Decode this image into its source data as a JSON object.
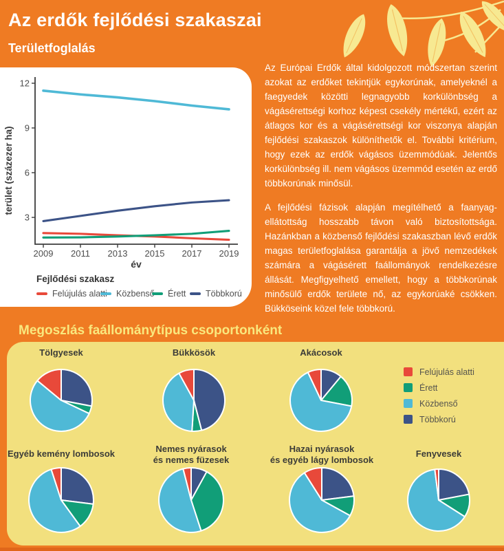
{
  "header": {
    "title": "Az erdők fejlődési szakaszai",
    "subtitle": "Területfoglalás"
  },
  "section2": {
    "title": "Megoszlás faállománytípus csoportonként"
  },
  "intro_paragraphs": [
    "Az Európai Erdők által kidolgozott módszertan szerint azokat az erdőket tekintjük egykorúnak, amelyeknél a faegyedek közötti legnagyobb korkülönbség a vágásérettségi korhoz képest csekély mértékű, ezért az átlagos kor és a vágásérettségi kor viszonya alapján fejlődési szakaszok különíthetők el. További kritérium, hogy ezek az erdők vágásos üzemmódúak. Jelentős korkülönbség ill. nem vágásos üzemmód esetén az erdő többkorúnak minősül.",
    "A fejlődési fázisok alapján megítélhető a faanyag-ellátottság hosszabb távon való biztosítottsága. Hazánkban a közbenső fejlődési szakaszban lévő erdők magas területfoglalása garantálja a jövő nemzedékek számára a vágásérett faállományok rendelkezésre állását. Megfigyelhető emellett, hogy a többkorúnak minősülő erdők területe nő, az egykorúaké csökken. Bükköseink közel fele többkorú."
  ],
  "colors": {
    "orange_background": "#EF7B23",
    "panel_yellow": "#F2E07E",
    "title_yellow": "#F9E87E",
    "leaf_yellow": "#F7E992",
    "card_white": "#FFFFFF",
    "bottom_bar_orange": "#E0661A",
    "felujulas_red": "#E8493A",
    "erett_green": "#119E78",
    "kozbenso_blue": "#4FB9D6",
    "tobbkoru_darkblue": "#3C5387"
  },
  "chart_data": [
    {
      "type": "line",
      "title": "Területfoglalás",
      "xlabel": "év",
      "ylabel": "terület (százezer ha)",
      "x": [
        2009,
        2011,
        2013,
        2015,
        2017,
        2019
      ],
      "xticks": [
        2009,
        2011,
        2013,
        2015,
        2017,
        2019
      ],
      "yticks": [
        3,
        6,
        9,
        12
      ],
      "ylim": [
        1,
        12.3
      ],
      "grid": false,
      "legend_title": "Fejlődési szakasz",
      "legend_position": "bottom",
      "legend_order": [
        "Felújulás alatti",
        "Közbenső",
        "Érett",
        "Többkorú"
      ],
      "series": [
        {
          "name": "Felújulás alatti",
          "color": "#E8493A",
          "values": [
            1.95,
            1.9,
            1.8,
            1.72,
            1.6,
            1.5
          ]
        },
        {
          "name": "Közbenső",
          "color": "#4FB9D6",
          "values": [
            11.5,
            11.25,
            11.05,
            10.8,
            10.5,
            10.25
          ]
        },
        {
          "name": "Érett",
          "color": "#119E78",
          "values": [
            1.65,
            1.66,
            1.72,
            1.8,
            1.9,
            2.1
          ]
        },
        {
          "name": "Többkorú",
          "color": "#3C5387",
          "values": [
            2.75,
            3.1,
            3.45,
            3.75,
            4.0,
            4.15
          ]
        }
      ]
    },
    {
      "type": "pie",
      "title": "Megoszlás faállománytípus csoportonként",
      "units": "percent",
      "slice_order": [
        "Többkorú",
        "Érett",
        "Közbenső",
        "Felújulás alatti"
      ],
      "legend": [
        {
          "label": "Felújulás alatti",
          "color": "#E8493A"
        },
        {
          "label": "Érett",
          "color": "#119E78"
        },
        {
          "label": "Közbenső",
          "color": "#4FB9D6"
        },
        {
          "label": "Többkorú",
          "color": "#3C5387"
        }
      ],
      "charts": [
        {
          "title_lines": [
            "Tölgyesek"
          ],
          "values": {
            "Többkorú": 28,
            "Érett": 4,
            "Közbenső": 54,
            "Felújulás alatti": 14
          }
        },
        {
          "title_lines": [
            "Bükkösök"
          ],
          "values": {
            "Többkorú": 46,
            "Érett": 5,
            "Közbenső": 41,
            "Felújulás alatti": 8
          }
        },
        {
          "title_lines": [
            "Akácosok"
          ],
          "values": {
            "Többkorú": 11,
            "Érett": 17,
            "Közbenső": 65,
            "Felújulás alatti": 7
          }
        },
        {
          "title_lines": [
            "Egyéb kemény lombosok"
          ],
          "values": {
            "Többkorú": 27,
            "Érett": 13,
            "Közbenső": 55,
            "Felújulás alatti": 5
          }
        },
        {
          "title_lines": [
            "Nemes nyárasok",
            "és nemes füzesek"
          ],
          "values": {
            "Többkorú": 8,
            "Érett": 37,
            "Közbenső": 51,
            "Felújulás alatti": 4
          }
        },
        {
          "title_lines": [
            "Hazai nyárasok",
            "és egyéb lágy lombosok"
          ],
          "values": {
            "Többkorú": 23,
            "Érett": 10,
            "Közbenső": 58,
            "Felújulás alatti": 9
          }
        },
        {
          "title_lines": [
            "Fenyvesek"
          ],
          "values": {
            "Többkorú": 22,
            "Érett": 12,
            "Közbenső": 64,
            "Felújulás alatti": 2
          }
        }
      ]
    }
  ]
}
